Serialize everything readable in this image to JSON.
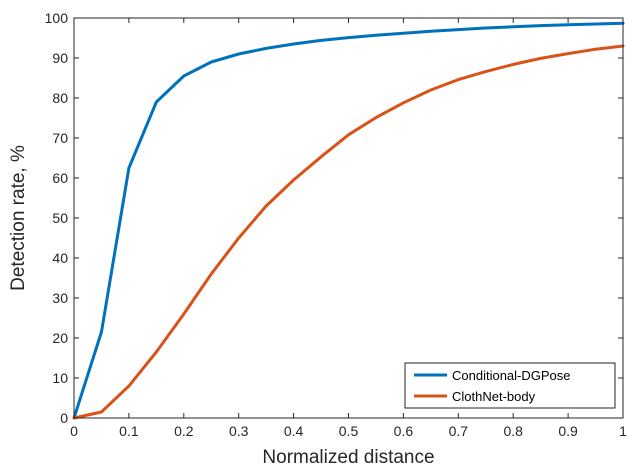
{
  "chart_data": {
    "type": "line",
    "xlabel": "Normalized distance",
    "ylabel": "Detection rate, %",
    "xlim": [
      0,
      1
    ],
    "ylim": [
      0,
      100
    ],
    "xticks": [
      0,
      0.1,
      0.2,
      0.3,
      0.4,
      0.5,
      0.6,
      0.7,
      0.8,
      0.9,
      1
    ],
    "xtick_labels": [
      "0",
      "0.1",
      "0.2",
      "0.3",
      "0.4",
      "0.5",
      "0.6",
      "0.7",
      "0.8",
      "0.9",
      "1"
    ],
    "yticks": [
      0,
      10,
      20,
      30,
      40,
      50,
      60,
      70,
      80,
      90,
      100
    ],
    "ytick_labels": [
      "0",
      "10",
      "20",
      "30",
      "40",
      "50",
      "60",
      "70",
      "80",
      "90",
      "100"
    ],
    "grid": false,
    "legend_position": "bottom-right",
    "series": [
      {
        "name": "Conditional-DGPose",
        "color": "#0072BD",
        "x": [
          0,
          0.05,
          0.1,
          0.15,
          0.2,
          0.25,
          0.3,
          0.35,
          0.4,
          0.45,
          0.5,
          0.55,
          0.6,
          0.65,
          0.7,
          0.75,
          0.8,
          0.85,
          0.9,
          0.95,
          1.0
        ],
        "y": [
          0,
          21.5,
          62.5,
          79,
          85.5,
          89,
          91,
          92.4,
          93.5,
          94.4,
          95.1,
          95.7,
          96.2,
          96.7,
          97.1,
          97.5,
          97.8,
          98.1,
          98.3,
          98.5,
          98.7
        ]
      },
      {
        "name": "ClothNet-body",
        "color": "#D95319",
        "x": [
          0,
          0.05,
          0.1,
          0.15,
          0.2,
          0.25,
          0.3,
          0.35,
          0.4,
          0.45,
          0.5,
          0.55,
          0.6,
          0.65,
          0.7,
          0.75,
          0.8,
          0.85,
          0.9,
          0.95,
          1.0
        ],
        "y": [
          0,
          1.5,
          8,
          16.5,
          26,
          36,
          45,
          53,
          59.5,
          65.3,
          70.8,
          75.1,
          78.8,
          82,
          84.6,
          86.6,
          88.4,
          89.9,
          91.1,
          92.2,
          93
        ]
      }
    ]
  }
}
